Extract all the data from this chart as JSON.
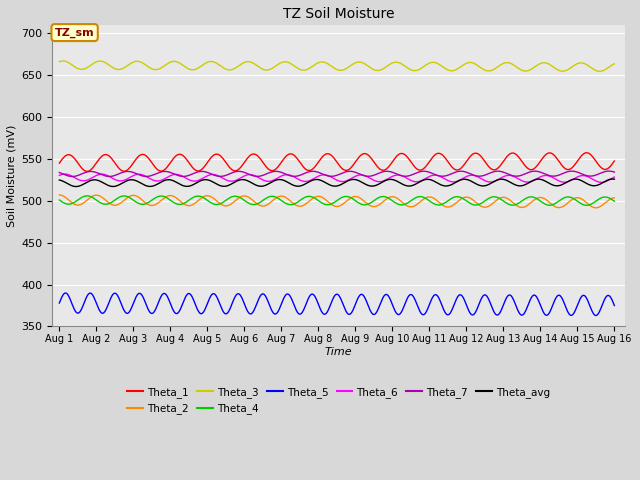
{
  "title": "TZ Soil Moisture",
  "xlabel": "Time",
  "ylabel": "Soil Moisture (mV)",
  "annotation": "TZ_sm",
  "ylim": [
    350,
    710
  ],
  "yticks": [
    350,
    400,
    450,
    500,
    550,
    600,
    650,
    700
  ],
  "num_points": 1500,
  "series": [
    {
      "name": "Theta_1",
      "color": "#ff0000",
      "base": 545,
      "amplitude": 10,
      "trend": 0.25,
      "freq": 1.0,
      "phase": 0.0
    },
    {
      "name": "Theta_2",
      "color": "#ff8800",
      "base": 501,
      "amplitude": 6,
      "trend": -0.35,
      "freq": 1.0,
      "phase": 0.5
    },
    {
      "name": "Theta_3",
      "color": "#cccc00",
      "base": 662,
      "amplitude": 5,
      "trend": -0.25,
      "freq": 1.0,
      "phase": 0.3
    },
    {
      "name": "Theta_4",
      "color": "#00cc00",
      "base": 501,
      "amplitude": 5,
      "trend": -0.15,
      "freq": 1.0,
      "phase": 1.0
    },
    {
      "name": "Theta_5",
      "color": "#0000ff",
      "base": 378,
      "amplitude": 12,
      "trend": -0.3,
      "freq": 1.5,
      "phase": 0.0
    },
    {
      "name": "Theta_6",
      "color": "#ff00ff",
      "base": 528,
      "amplitude": 4,
      "trend": -0.2,
      "freq": 1.0,
      "phase": 0.2
    },
    {
      "name": "Theta_7",
      "color": "#aa00aa",
      "base": 532,
      "amplitude": 3,
      "trend": 0.05,
      "freq": 1.0,
      "phase": 0.8
    },
    {
      "name": "Theta_avg",
      "color": "#000000",
      "base": 521,
      "amplitude": 4,
      "trend": 0.1,
      "freq": 1.0,
      "phase": 0.6
    }
  ],
  "bg_color": "#d8d8d8",
  "plot_bg_color": "#e8e8e8",
  "grid_color": "#ffffff",
  "xtick_labels": [
    "Aug 1",
    "Aug 2",
    "Aug 3",
    "Aug 4",
    "Aug 5",
    "Aug 6",
    "Aug 7",
    "Aug 8",
    "Aug 9",
    "Aug 10",
    "Aug 11",
    "Aug 12",
    "Aug 13",
    "Aug 14",
    "Aug 15",
    "Aug 16"
  ]
}
